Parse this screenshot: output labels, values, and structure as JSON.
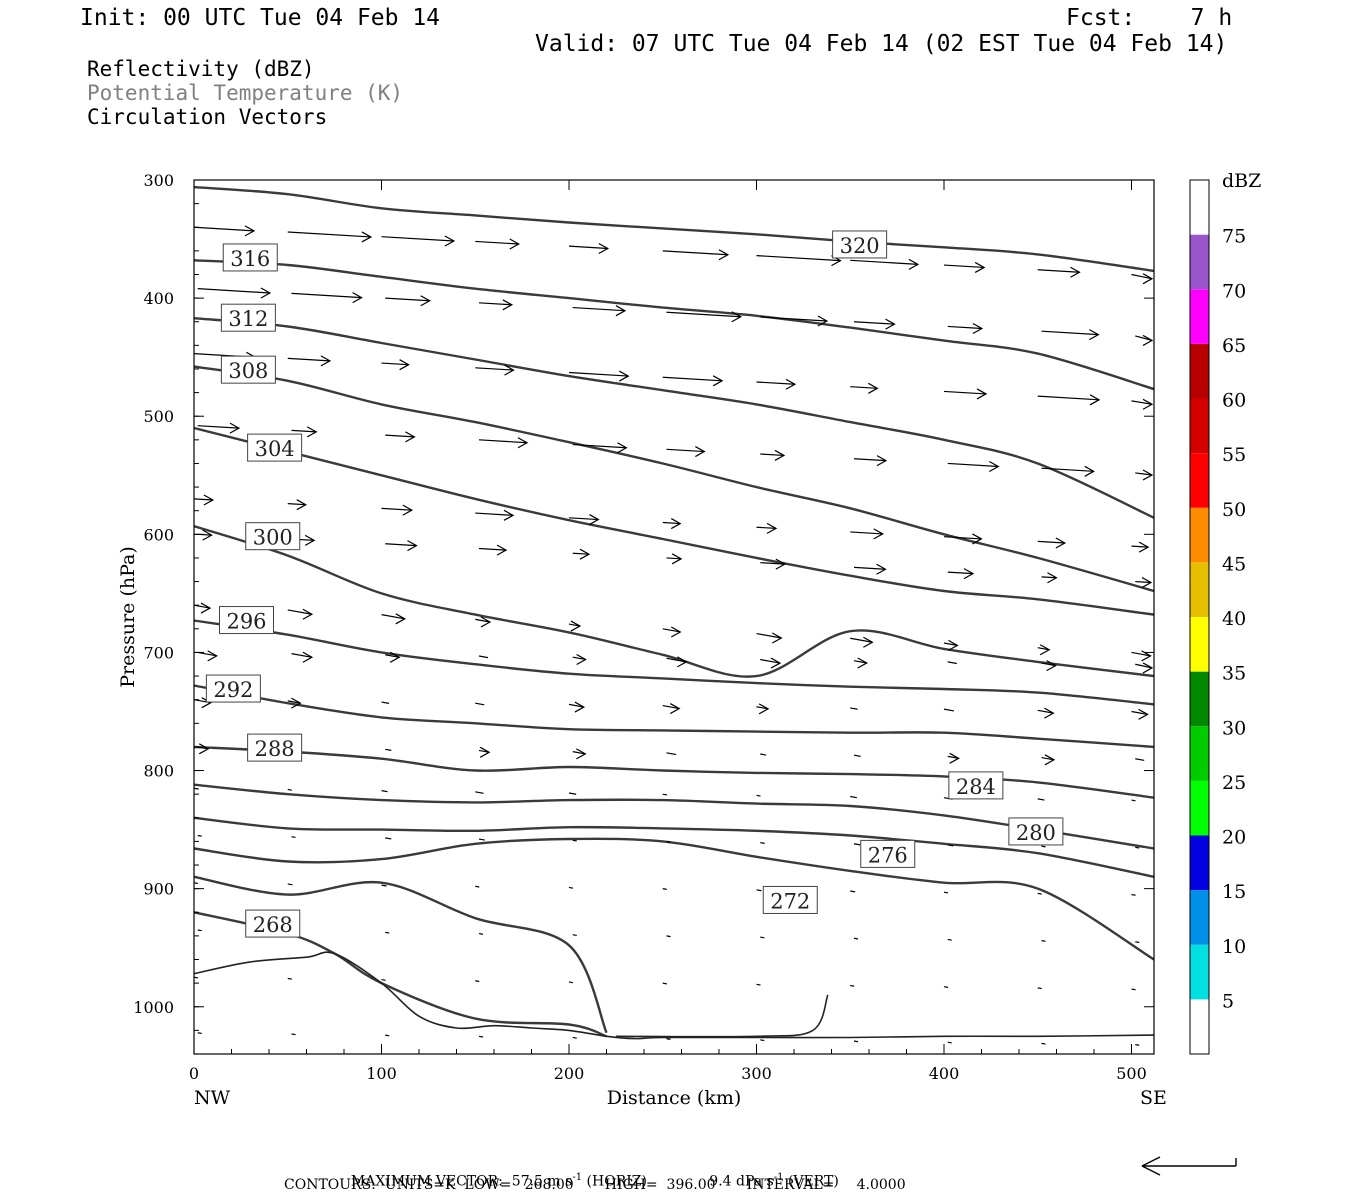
{
  "header": {
    "init": "Init: 00 UTC Tue 04 Feb 14",
    "fcst": "Fcst:    7 h",
    "valid": "Valid: 07 UTC Tue 04 Feb 14 (02 EST Tue 04 Feb 14)",
    "field1": "Reflectivity (dBZ)",
    "field2": "Potential Temperature (K)",
    "field3": "Circulation Vectors"
  },
  "footer": {
    "max_vector_label": "MAXIMUM VECTOR:",
    "horiz_value": "57.5 m s",
    "horiz_exp": "-1",
    "horiz_tag": "(HORIZ)",
    "vert_value": "9.4 dPa s",
    "vert_exp": "-1",
    "vert_tag": "(VERT)",
    "contours": "CONTOURS:  UNITS=K  LOW=   268.00       HIGH=  396.00       INTERVAL=     4.0000"
  },
  "colors": {
    "contour": "#3a3a3a",
    "vector": "#000000"
  },
  "chart_data": {
    "type": "line",
    "xlabel": "Distance (km)",
    "ylabel": "Pressure (hPa)",
    "xlim": [
      0,
      512
    ],
    "ylim": [
      1040,
      300
    ],
    "y_scale": "linear (inverted)",
    "x_ticks": [
      0,
      100,
      200,
      300,
      400,
      500
    ],
    "y_ticks": [
      300,
      400,
      500,
      600,
      700,
      800,
      900,
      1000
    ],
    "x_end_labels": {
      "left": "NW",
      "right": "SE"
    },
    "contour_field": "Potential Temperature (K)",
    "contour_interval": 4,
    "series": [
      {
        "label": "320",
        "x": [
          0,
          50,
          100,
          150,
          200,
          250,
          300,
          350,
          400,
          450,
          512
        ],
        "y": [
          306,
          312,
          324,
          330,
          336,
          341,
          346,
          352,
          357,
          363,
          377
        ],
        "label_at": [
          355,
          355
        ]
      },
      {
        "label": "316",
        "x": [
          0,
          50,
          100,
          150,
          200,
          250,
          300,
          350,
          400,
          450,
          512
        ],
        "y": [
          368,
          372,
          382,
          392,
          400,
          408,
          415,
          425,
          436,
          447,
          477
        ],
        "label_at": [
          30,
          366
        ]
      },
      {
        "label": "312",
        "x": [
          0,
          50,
          100,
          150,
          200,
          250,
          300,
          350,
          400,
          450,
          512
        ],
        "y": [
          417,
          424,
          438,
          452,
          466,
          478,
          490,
          505,
          520,
          540,
          586
        ],
        "label_at": [
          29,
          417
        ]
      },
      {
        "label": "308",
        "x": [
          0,
          50,
          100,
          150,
          200,
          250,
          300,
          350,
          400,
          450,
          512
        ],
        "y": [
          458,
          470,
          490,
          505,
          522,
          540,
          560,
          578,
          600,
          620,
          648
        ],
        "label_at": [
          29,
          461
        ]
      },
      {
        "label": "304",
        "x": [
          0,
          50,
          100,
          150,
          200,
          250,
          300,
          350,
          400,
          450,
          512
        ],
        "y": [
          510,
          530,
          550,
          570,
          588,
          604,
          620,
          635,
          648,
          655,
          668
        ],
        "label_at": [
          43,
          527
        ]
      },
      {
        "label": "300",
        "x": [
          0,
          50,
          100,
          150,
          200,
          250,
          300,
          350,
          400,
          450,
          512
        ],
        "y": [
          593,
          618,
          650,
          668,
          683,
          702,
          720,
          682,
          697,
          708,
          720
        ],
        "label_at": [
          42,
          602
        ]
      },
      {
        "label": "296",
        "x": [
          0,
          50,
          100,
          150,
          200,
          250,
          300,
          350,
          400,
          450,
          512
        ],
        "y": [
          673,
          685,
          700,
          710,
          718,
          722,
          726,
          729,
          731,
          734,
          744
        ],
        "label_at": [
          28,
          673
        ]
      },
      {
        "label": "292",
        "x": [
          0,
          50,
          100,
          150,
          200,
          250,
          300,
          350,
          400,
          450,
          512
        ],
        "y": [
          728,
          743,
          755,
          760,
          765,
          766,
          767,
          768,
          768,
          773,
          780
        ],
        "label_at": [
          21,
          731
        ]
      },
      {
        "label": "288",
        "x": [
          0,
          50,
          100,
          150,
          200,
          250,
          300,
          350,
          400,
          450,
          512
        ],
        "y": [
          780,
          784,
          790,
          800,
          797,
          800,
          802,
          803,
          805,
          810,
          823
        ],
        "label_at": [
          43,
          781
        ]
      },
      {
        "label": "284",
        "x": [
          0,
          50,
          100,
          150,
          200,
          250,
          300,
          350,
          400,
          450,
          512
        ],
        "y": [
          812,
          820,
          825,
          827,
          825,
          825,
          828,
          830,
          838,
          850,
          866
        ],
        "label_at": [
          417,
          813
        ]
      },
      {
        "label": "280",
        "x": [
          0,
          50,
          100,
          150,
          200,
          250,
          300,
          350,
          400,
          450,
          512
        ],
        "y": [
          840,
          849,
          850,
          851,
          848,
          849,
          851,
          855,
          862,
          870,
          890
        ],
        "label_at": [
          449,
          852
        ]
      },
      {
        "label": "276",
        "x": [
          0,
          50,
          100,
          150,
          200,
          250,
          300,
          350,
          400,
          450,
          512
        ],
        "y": [
          866,
          877,
          875,
          862,
          858,
          860,
          873,
          885,
          895,
          900,
          960
        ],
        "label_at": [
          370,
          871
        ]
      },
      {
        "label": "272",
        "x": [
          0,
          50,
          100,
          150,
          200,
          220
        ],
        "y": [
          890,
          905,
          895,
          925,
          948,
          1022
        ],
        "label_at": [
          318,
          910
        ]
      },
      {
        "label": "268",
        "x": [
          0,
          50,
          75,
          100,
          150,
          200,
          220
        ],
        "y": [
          920,
          938,
          955,
          980,
          1010,
          1015,
          1025
        ],
        "label_at": [
          42,
          930
        ]
      }
    ],
    "unlabeled_contours": [
      {
        "x": [
          225,
          300,
          330,
          338
        ],
        "y": [
          1025,
          1025,
          1020,
          990
        ]
      },
      {
        "x": [
          0,
          30,
          60,
          75,
          100,
          120,
          140,
          160,
          180,
          200,
          220,
          235,
          250,
          300,
          350,
          400,
          450,
          512
        ],
        "y": [
          972,
          962,
          958,
          955,
          980,
          1008,
          1018,
          1016,
          1018,
          1020,
          1025,
          1027,
          1026,
          1026,
          1026,
          1025,
          1025,
          1024
        ]
      }
    ],
    "vectors_note": "Circulation vectors shown as arrows; longer in upper levels, near-zero near surface"
  },
  "colorbar": {
    "unit": "dBZ",
    "levels": [
      5,
      10,
      15,
      20,
      25,
      30,
      35,
      40,
      45,
      50,
      55,
      60,
      65,
      70,
      75
    ],
    "colors": [
      "#ffffff",
      "#00e0e0",
      "#0090e8",
      "#0000e0",
      "#00ff00",
      "#00cc00",
      "#008800",
      "#ffff00",
      "#e6bf00",
      "#ff8c00",
      "#ff0000",
      "#d40000",
      "#b80000",
      "#ff00ff",
      "#9955cc",
      "#ffffff"
    ]
  }
}
